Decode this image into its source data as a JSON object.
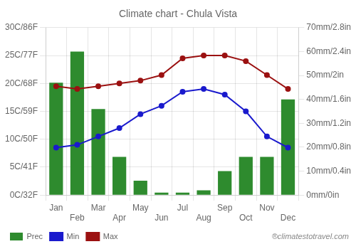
{
  "chart_data": {
    "type": "bar",
    "title": "Climate chart - Chula Vista",
    "categories": [
      "Jan",
      "Feb",
      "Mar",
      "Apr",
      "May",
      "Jun",
      "Jul",
      "Aug",
      "Sep",
      "Oct",
      "Nov",
      "Dec"
    ],
    "series": [
      {
        "name": "Prec",
        "type": "bar",
        "axis": "y2",
        "color": "#2e8b2e",
        "values": [
          47,
          60,
          36,
          16,
          6,
          1,
          1,
          2,
          10,
          16,
          16,
          40
        ]
      },
      {
        "name": "Min",
        "type": "line",
        "color": "#1a1acd",
        "marker": "circle",
        "line_style": "solid",
        "values": [
          8.5,
          9.0,
          10.5,
          12.0,
          14.5,
          16.0,
          18.5,
          19.0,
          18.0,
          15.0,
          10.5,
          8.5
        ]
      },
      {
        "name": "Max",
        "type": "line",
        "color": "#9b1111",
        "marker": "circle",
        "line_style": "solid",
        "values": [
          19.5,
          19.0,
          19.5,
          20.0,
          20.5,
          21.5,
          24.5,
          25.0,
          25.0,
          24.0,
          21.5,
          19.0
        ]
      }
    ],
    "ylim": [
      0,
      30
    ],
    "yticks": [
      {
        "value": 0,
        "label": "0C/32F"
      },
      {
        "value": 5,
        "label": "5C/41F"
      },
      {
        "value": 10,
        "label": "10C/50F"
      },
      {
        "value": 15,
        "label": "15C/59F"
      },
      {
        "value": 20,
        "label": "20C/68F"
      },
      {
        "value": 25,
        "label": "25C/77F"
      },
      {
        "value": 30,
        "label": "30C/86F"
      }
    ],
    "y2lim": [
      0,
      70
    ],
    "y2ticks": [
      {
        "value": 0,
        "label": "0mm/0in"
      },
      {
        "value": 10,
        "label": "10mm/0.4in"
      },
      {
        "value": 20,
        "label": "20mm/0.8in"
      },
      {
        "value": 30,
        "label": "30mm/1.2in"
      },
      {
        "value": 40,
        "label": "40mm/1.6in"
      },
      {
        "value": 50,
        "label": "50mm/2in"
      },
      {
        "value": 60,
        "label": "60mm/2.4in"
      },
      {
        "value": 70,
        "label": "70mm/2.8in"
      }
    ],
    "grid": true,
    "legend": "lower left",
    "annotations": [
      "®climatestotravel.com"
    ]
  }
}
